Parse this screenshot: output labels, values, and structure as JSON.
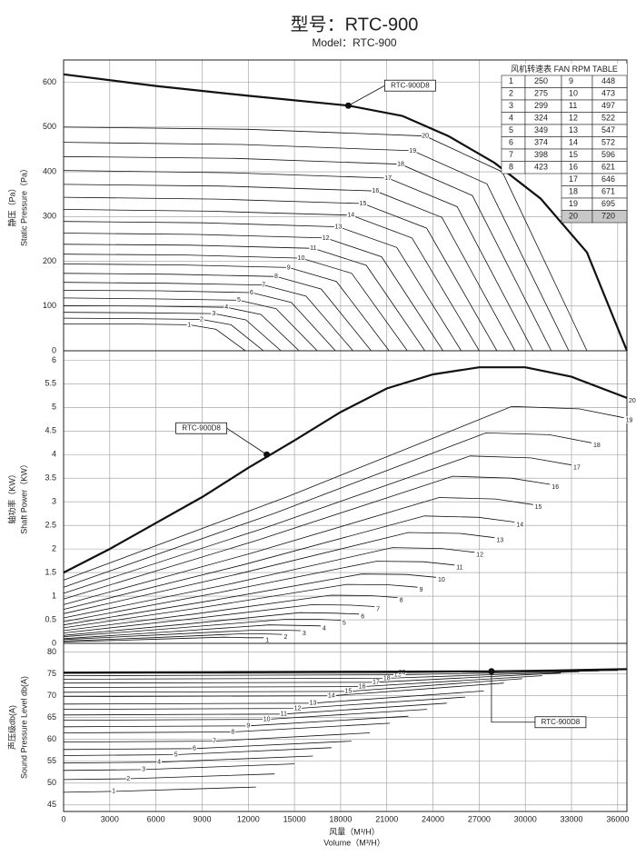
{
  "title": "型号：RTC-900",
  "subtitle": "Model：RTC-900",
  "fan_table": {
    "title": "风机转速表  FAN  RPM  TABLE",
    "highlight_row": 19,
    "rows": [
      [
        1,
        250
      ],
      [
        2,
        275
      ],
      [
        3,
        299
      ],
      [
        4,
        324
      ],
      [
        5,
        349
      ],
      [
        6,
        374
      ],
      [
        7,
        398
      ],
      [
        8,
        423
      ],
      [
        9,
        448
      ],
      [
        10,
        473
      ],
      [
        11,
        497
      ],
      [
        12,
        522
      ],
      [
        13,
        547
      ],
      [
        14,
        572
      ],
      [
        15,
        596
      ],
      [
        16,
        621
      ],
      [
        17,
        646
      ],
      [
        18,
        671
      ],
      [
        19,
        695
      ],
      [
        20,
        720
      ]
    ]
  },
  "chart_data": [
    {
      "type": "line",
      "ylabel": [
        "静压（Pa）",
        "Static Pressure（Pa）"
      ],
      "xlim": [
        0,
        36600
      ],
      "ylim": [
        0,
        650
      ],
      "yticks": [
        0,
        100,
        200,
        300,
        400,
        500,
        600
      ],
      "grid": true,
      "series": [
        {
          "name": "1",
          "x": [
            0,
            4170,
            8160,
            9900,
            11810
          ],
          "values": [
            60,
            60,
            58,
            48,
            0
          ]
        },
        {
          "name": "2",
          "x": [
            0,
            4580,
            8970,
            10880,
            12990
          ],
          "values": [
            73,
            72,
            70,
            58,
            0
          ]
        },
        {
          "name": "3",
          "x": [
            0,
            4980,
            9760,
            11840,
            14120
          ],
          "values": [
            86,
            85,
            83,
            69,
            0
          ]
        },
        {
          "name": "4",
          "x": [
            0,
            5400,
            10580,
            12830,
            15300
          ],
          "values": [
            101,
            100,
            97,
            81,
            0
          ]
        },
        {
          "name": "5",
          "x": [
            0,
            5820,
            11390,
            13810,
            16480
          ],
          "values": [
            118,
            116,
            113,
            94,
            0
          ]
        },
        {
          "name": "6",
          "x": [
            0,
            6230,
            12210,
            14800,
            17660
          ],
          "values": [
            135,
            134,
            130,
            108,
            0
          ]
        },
        {
          "name": "7",
          "x": [
            0,
            6630,
            12990,
            15750,
            18800
          ],
          "values": [
            153,
            151,
            147,
            122,
            0
          ]
        },
        {
          "name": "8",
          "x": [
            0,
            7050,
            13810,
            16740,
            19980
          ],
          "values": [
            173,
            171,
            166,
            138,
            0
          ]
        },
        {
          "name": "9",
          "x": [
            0,
            7470,
            14620,
            17730,
            21150
          ],
          "values": [
            194,
            192,
            186,
            155,
            0
          ]
        },
        {
          "name": "10",
          "x": [
            0,
            7880,
            15440,
            18720,
            22330
          ],
          "values": [
            216,
            214,
            207,
            173,
            0
          ]
        },
        {
          "name": "11",
          "x": [
            0,
            8280,
            16220,
            19670,
            23470
          ],
          "values": [
            238,
            236,
            229,
            191,
            0
          ]
        },
        {
          "name": "12",
          "x": [
            0,
            8700,
            17040,
            20660,
            24650
          ],
          "values": [
            263,
            260,
            252,
            210,
            0
          ]
        },
        {
          "name": "13",
          "x": [
            0,
            9120,
            17850,
            21650,
            25830
          ],
          "values": [
            289,
            286,
            277,
            231,
            0
          ]
        },
        {
          "name": "14",
          "x": [
            0,
            9530,
            18670,
            22640,
            27010
          ],
          "values": [
            316,
            312,
            303,
            252,
            0
          ]
        },
        {
          "name": "15",
          "x": [
            0,
            9930,
            19450,
            23590,
            28150
          ],
          "values": [
            343,
            339,
            329,
            274,
            0
          ]
        },
        {
          "name": "16",
          "x": [
            0,
            10350,
            20270,
            24580,
            29330
          ],
          "values": [
            372,
            368,
            357,
            298,
            0
          ]
        },
        {
          "name": "17",
          "x": [
            0,
            10770,
            21080,
            25570,
            30500
          ],
          "values": [
            403,
            398,
            386,
            322,
            0
          ]
        },
        {
          "name": "18",
          "x": [
            0,
            11180,
            21900,
            26560,
            31680
          ],
          "values": [
            434,
            430,
            417,
            347,
            0
          ]
        },
        {
          "name": "19",
          "x": [
            0,
            11580,
            22680,
            27510,
            32820
          ],
          "values": [
            466,
            461,
            447,
            373,
            0
          ]
        },
        {
          "name": "20",
          "x": [
            0,
            12000,
            23500,
            28500,
            34000
          ],
          "values": [
            500,
            495,
            480,
            400,
            0
          ]
        },
        {
          "bold": true,
          "x": [
            0,
            6000,
            12000,
            18500,
            22000,
            25000,
            28000,
            31000,
            34000,
            36600
          ],
          "values": [
            618,
            592,
            570,
            548,
            525,
            480,
            420,
            340,
            220,
            0
          ],
          "marker": {
            "x": 18500,
            "y": 548,
            "label": "RTC-900D8"
          }
        }
      ]
    },
    {
      "type": "line",
      "ylabel": [
        "轴功率（KW）",
        "Shaft Power（KW）"
      ],
      "xlim": [
        0,
        36600
      ],
      "ylim": [
        0,
        6.2
      ],
      "yticks": [
        0,
        0.5,
        1,
        1.5,
        2,
        2.5,
        3,
        3.5,
        4,
        4.5,
        5,
        5.5,
        6
      ],
      "grid": true,
      "series": [
        {
          "name": "1",
          "x": [
            0,
            5200,
            10400,
            11960,
            13000
          ],
          "values": [
            0.03,
            0.08,
            0.13,
            0.12,
            0.12
          ]
        },
        {
          "name": "2",
          "x": [
            0,
            5680,
            11360,
            13060,
            14200
          ],
          "values": [
            0.05,
            0.12,
            0.2,
            0.2,
            0.19
          ]
        },
        {
          "name": "3",
          "x": [
            0,
            6160,
            12320,
            14170,
            15400
          ],
          "values": [
            0.08,
            0.18,
            0.28,
            0.28,
            0.27
          ]
        },
        {
          "name": "4",
          "x": [
            0,
            6680,
            13360,
            15360,
            16700
          ],
          "values": [
            0.1,
            0.24,
            0.39,
            0.38,
            0.37
          ]
        },
        {
          "name": "5",
          "x": [
            0,
            7200,
            14400,
            16560,
            18000
          ],
          "values": [
            0.14,
            0.32,
            0.51,
            0.51,
            0.49
          ]
        },
        {
          "name": "6",
          "x": [
            0,
            7680,
            15360,
            17660,
            19200
          ],
          "values": [
            0.17,
            0.4,
            0.65,
            0.64,
            0.62
          ]
        },
        {
          "name": "7",
          "x": [
            0,
            8080,
            16160,
            18580,
            20200
          ],
          "values": [
            0.22,
            0.51,
            0.82,
            0.81,
            0.78
          ]
        },
        {
          "name": "8",
          "x": [
            0,
            8680,
            17360,
            19960,
            21700
          ],
          "values": [
            0.27,
            0.63,
            1.02,
            1.01,
            0.97
          ]
        },
        {
          "name": "9",
          "x": [
            0,
            9200,
            18400,
            21160,
            23000
          ],
          "values": [
            0.33,
            0.77,
            1.25,
            1.24,
            1.19
          ]
        },
        {
          "name": "10",
          "x": [
            0,
            9680,
            19360,
            22260,
            24200
          ],
          "values": [
            0.39,
            0.91,
            1.47,
            1.46,
            1.4
          ]
        },
        {
          "name": "11",
          "x": [
            0,
            10160,
            20320,
            23370,
            25400
          ],
          "values": [
            0.46,
            1.08,
            1.74,
            1.73,
            1.66
          ]
        },
        {
          "name": "12",
          "x": [
            0,
            10680,
            21360,
            24560,
            26700
          ],
          "values": [
            0.54,
            1.25,
            2.03,
            2.01,
            1.93
          ]
        },
        {
          "name": "13",
          "x": [
            0,
            11200,
            22400,
            25760,
            28000
          ],
          "values": [
            0.63,
            1.46,
            2.35,
            2.33,
            2.24
          ]
        },
        {
          "name": "14",
          "x": [
            0,
            11720,
            23440,
            26960,
            29300
          ],
          "values": [
            0.72,
            1.67,
            2.7,
            2.67,
            2.57
          ]
        },
        {
          "name": "15",
          "x": [
            0,
            12200,
            24400,
            28060,
            30500
          ],
          "values": [
            0.82,
            1.91,
            3.09,
            3.06,
            2.94
          ]
        },
        {
          "name": "16",
          "x": [
            0,
            12640,
            25280,
            29070,
            31600
          ],
          "values": [
            0.94,
            2.19,
            3.54,
            3.5,
            3.37
          ]
        },
        {
          "name": "17",
          "x": [
            0,
            13200,
            26400,
            30360,
            33000
          ],
          "values": [
            1.06,
            2.46,
            3.97,
            3.93,
            3.78
          ]
        },
        {
          "name": "18",
          "x": [
            0,
            13720,
            27440,
            31560,
            34300
          ],
          "values": [
            1.19,
            2.76,
            4.46,
            4.42,
            4.25
          ]
        },
        {
          "name": "19",
          "x": [
            0,
            14560,
            29120,
            33490,
            36400
          ],
          "values": [
            1.34,
            3.11,
            5.02,
            4.97,
            4.78
          ]
        },
        {
          "name": "20",
          "bold": true,
          "x": [
            0,
            3000,
            6000,
            9000,
            12000,
            15000,
            18000,
            21000,
            24000,
            27000,
            30000,
            33000,
            36600
          ],
          "values": [
            1.5,
            2,
            2.55,
            3.1,
            3.72,
            4.3,
            4.9,
            5.4,
            5.7,
            5.85,
            5.85,
            5.65,
            5.2
          ],
          "marker": {
            "x": 13200,
            "y": 4,
            "label": "RTC-900D8"
          }
        }
      ]
    },
    {
      "type": "line",
      "ylabel": [
        "声压级db(A)",
        "Sound Pressure Level db(A)"
      ],
      "xlabel": [
        "风量（M³/H）",
        "Volume（M³/H）"
      ],
      "xlim": [
        0,
        36600
      ],
      "ylim": [
        43.5,
        82
      ],
      "yticks": [
        45,
        50,
        55,
        60,
        65,
        70,
        75,
        80
      ],
      "xticks": [
        0,
        3000,
        6000,
        9000,
        12000,
        15000,
        18000,
        21000,
        24000,
        27000,
        30000,
        33000,
        36000
      ],
      "grid": true,
      "series": [
        {
          "name": "1",
          "x": [
            0,
            3250,
            12500
          ],
          "values": [
            47.9,
            48.1,
            49.1
          ]
        },
        {
          "name": "2",
          "x": [
            0,
            4200,
            13700
          ],
          "values": [
            50.8,
            51,
            52.1
          ]
        },
        {
          "name": "3",
          "x": [
            0,
            5200,
            15000
          ],
          "values": [
            52.9,
            53.1,
            54.4
          ]
        },
        {
          "name": "4",
          "x": [
            0,
            6200,
            16200
          ],
          "values": [
            54.6,
            54.8,
            56.2
          ]
        },
        {
          "name": "5",
          "x": [
            0,
            7300,
            17400
          ],
          "values": [
            56.3,
            56.5,
            58.1
          ]
        },
        {
          "name": "6",
          "x": [
            0,
            8500,
            18700
          ],
          "values": [
            57.7,
            57.9,
            59.6
          ]
        },
        {
          "name": "7",
          "x": [
            0,
            9800,
            19900
          ],
          "values": [
            59.4,
            59.6,
            61.5
          ]
        },
        {
          "name": "8",
          "x": [
            0,
            11000,
            21200
          ],
          "values": [
            61.5,
            61.7,
            63.7
          ]
        },
        {
          "name": "9",
          "x": [
            0,
            12000,
            22400
          ],
          "values": [
            62.9,
            63.1,
            65.3
          ]
        },
        {
          "name": "10",
          "x": [
            0,
            13200,
            23600
          ],
          "values": [
            64.4,
            64.6,
            66.9
          ]
        },
        {
          "name": "11",
          "x": [
            0,
            14300,
            24900
          ],
          "values": [
            65.6,
            65.8,
            68.3
          ]
        },
        {
          "name": "12",
          "x": [
            0,
            15200,
            26100
          ],
          "values": [
            66.9,
            67.1,
            69.7
          ]
        },
        {
          "name": "13",
          "x": [
            0,
            16200,
            27300
          ],
          "values": [
            68.1,
            68.3,
            71.1
          ]
        },
        {
          "name": "14",
          "x": [
            0,
            17400,
            28600
          ],
          "values": [
            69.8,
            70,
            72.9
          ]
        },
        {
          "name": "15",
          "x": [
            0,
            18500,
            29800
          ],
          "values": [
            70.8,
            71,
            73.9
          ]
        },
        {
          "name": "16",
          "x": [
            0,
            19400,
            31100
          ],
          "values": [
            71.9,
            72.1,
            74.6
          ]
        },
        {
          "name": "17",
          "x": [
            0,
            20300,
            32300
          ],
          "values": [
            72.9,
            73.1,
            75.2
          ]
        },
        {
          "name": "18",
          "x": [
            0,
            21000,
            33500
          ],
          "values": [
            73.8,
            74,
            75.5
          ]
        },
        {
          "name": "19",
          "x": [
            0,
            21700,
            34800
          ],
          "values": [
            74.6,
            74.8,
            75.7
          ]
        },
        {
          "name": "20",
          "x": [
            0,
            22000,
            36000
          ],
          "values": [
            75.2,
            75.3,
            75.8
          ]
        },
        {
          "bold": true,
          "x": [
            0,
            10000,
            20000,
            27800,
            32000,
            36600
          ],
          "values": [
            75.3,
            75.4,
            75.5,
            75.6,
            75.8,
            76.1
          ],
          "marker": {
            "x": 27800,
            "y": 75.6,
            "label": "RTC-900D8"
          }
        }
      ]
    }
  ]
}
